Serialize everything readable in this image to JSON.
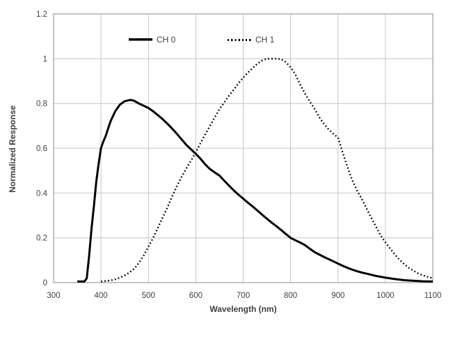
{
  "chart_data": {
    "type": "line",
    "title": "",
    "xlabel": "Wavelength (nm)",
    "ylabel": "Normalized Response",
    "xlim": [
      300,
      1100
    ],
    "ylim": [
      0,
      1.2
    ],
    "xticks": [
      300,
      400,
      500,
      600,
      700,
      800,
      900,
      1000,
      1100
    ],
    "xtick_labels": [
      "300",
      "400",
      "500",
      "600",
      "700",
      "800",
      "900",
      "1000",
      "1100"
    ],
    "yticks": [
      0,
      0.2,
      0.4,
      0.6,
      0.8,
      1,
      1.2
    ],
    "ytick_labels": [
      "0",
      "0.2",
      "0.4",
      "0.6",
      "0.8",
      "1",
      "1.2"
    ],
    "grid": true,
    "legend_position": "top-inside",
    "series": [
      {
        "name": "CH 0",
        "style": "solid",
        "color": "#000000",
        "x": [
          350,
          360,
          365,
          370,
          375,
          380,
          385,
          390,
          395,
          400,
          405,
          410,
          420,
          430,
          440,
          450,
          460,
          465,
          470,
          480,
          490,
          500,
          510,
          520,
          530,
          540,
          550,
          560,
          570,
          580,
          590,
          600,
          610,
          620,
          630,
          640,
          650,
          660,
          670,
          680,
          690,
          700,
          710,
          720,
          730,
          740,
          750,
          760,
          770,
          780,
          790,
          800,
          810,
          820,
          830,
          840,
          850,
          860,
          870,
          880,
          890,
          900,
          910,
          920,
          930,
          940,
          950,
          960,
          970,
          980,
          990,
          1000,
          1020,
          1040,
          1060,
          1080,
          1100
        ],
        "y": [
          0.005,
          0.005,
          0.005,
          0.02,
          0.12,
          0.24,
          0.34,
          0.45,
          0.53,
          0.6,
          0.63,
          0.655,
          0.72,
          0.765,
          0.795,
          0.81,
          0.815,
          0.815,
          0.812,
          0.8,
          0.79,
          0.78,
          0.765,
          0.748,
          0.73,
          0.71,
          0.688,
          0.665,
          0.64,
          0.615,
          0.595,
          0.575,
          0.553,
          0.528,
          0.507,
          0.492,
          0.478,
          0.455,
          0.433,
          0.412,
          0.393,
          0.375,
          0.357,
          0.34,
          0.322,
          0.303,
          0.285,
          0.268,
          0.252,
          0.235,
          0.217,
          0.2,
          0.189,
          0.179,
          0.168,
          0.152,
          0.137,
          0.126,
          0.115,
          0.105,
          0.095,
          0.085,
          0.075,
          0.066,
          0.058,
          0.051,
          0.045,
          0.04,
          0.035,
          0.03,
          0.026,
          0.022,
          0.016,
          0.011,
          0.008,
          0.006,
          0.005
        ]
      },
      {
        "name": "CH 1",
        "style": "dotted",
        "color": "#000000",
        "x": [
          400,
          410,
          420,
          430,
          440,
          450,
          460,
          470,
          480,
          490,
          500,
          510,
          520,
          530,
          540,
          550,
          560,
          570,
          580,
          590,
          600,
          610,
          620,
          630,
          640,
          650,
          660,
          670,
          680,
          690,
          700,
          710,
          720,
          730,
          740,
          750,
          760,
          770,
          780,
          790,
          800,
          810,
          820,
          830,
          840,
          850,
          860,
          870,
          880,
          890,
          900,
          910,
          920,
          930,
          940,
          950,
          960,
          970,
          980,
          990,
          1000,
          1010,
          1020,
          1030,
          1040,
          1050,
          1060,
          1070,
          1080,
          1090,
          1100
        ],
        "y": [
          0.005,
          0.007,
          0.01,
          0.015,
          0.022,
          0.032,
          0.045,
          0.062,
          0.088,
          0.12,
          0.16,
          0.2,
          0.245,
          0.29,
          0.335,
          0.385,
          0.43,
          0.472,
          0.51,
          0.545,
          0.582,
          0.624,
          0.662,
          0.7,
          0.738,
          0.775,
          0.805,
          0.835,
          0.862,
          0.89,
          0.915,
          0.938,
          0.958,
          0.978,
          0.992,
          1.0,
          1.0,
          1.0,
          0.998,
          0.985,
          0.962,
          0.93,
          0.885,
          0.845,
          0.81,
          0.778,
          0.74,
          0.71,
          0.685,
          0.665,
          0.648,
          0.58,
          0.515,
          0.458,
          0.412,
          0.375,
          0.332,
          0.29,
          0.25,
          0.21,
          0.18,
          0.152,
          0.125,
          0.102,
          0.082,
          0.065,
          0.052,
          0.04,
          0.032,
          0.025,
          0.02
        ]
      }
    ]
  },
  "colors": {
    "curve": "#000000",
    "gridline": "#c6c6c6",
    "plot_border": "#9e9e9e",
    "tick_text": "#3f3f3f",
    "background": "#ffffff"
  }
}
